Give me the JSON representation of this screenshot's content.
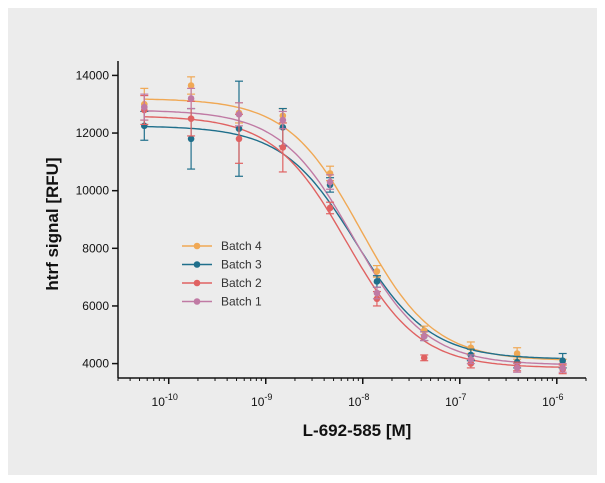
{
  "chart_data": {
    "type": "scatter",
    "title": "",
    "xlabel": "L-692-585 [M]",
    "ylabel": "htrf signal [RFU]",
    "xscale": "log",
    "xlim": [
      3e-11,
      2e-06
    ],
    "ylim": [
      3500,
      14500
    ],
    "x_ticks": [
      1e-10,
      1e-09,
      1e-08,
      1e-07,
      1e-06
    ],
    "x_tick_labels": [
      {
        "base": "10",
        "exp": "-10"
      },
      {
        "base": "10",
        "exp": "-9"
      },
      {
        "base": "10",
        "exp": "-8"
      },
      {
        "base": "10",
        "exp": "-7"
      },
      {
        "base": "10",
        "exp": "-6"
      }
    ],
    "y_ticks": [
      4000,
      6000,
      8000,
      10000,
      12000,
      14000
    ],
    "y_tick_labels": [
      "4000",
      "6000",
      "8000",
      "10000",
      "12000",
      "14000"
    ],
    "grid": false,
    "legend_position": "center-left",
    "x": [
      5.6e-11,
      1.7e-10,
      5.3e-10,
      1.5e-09,
      4.6e-09,
      1.4e-08,
      4.3e-08,
      1.3e-07,
      3.9e-07,
      1.15e-06
    ],
    "series": [
      {
        "name": "Batch 4",
        "color": "#f0a854",
        "y": [
          13000,
          13650,
          12700,
          12600,
          10600,
          7200,
          5150,
          4550,
          4350,
          4000
        ],
        "err": [
          550,
          300,
          350,
          250,
          250,
          200,
          150,
          200,
          200,
          150
        ],
        "fit": {
          "top": 13200,
          "bottom": 4100,
          "ec50": 9.5e-09,
          "hill": 1.15
        }
      },
      {
        "name": "Batch 3",
        "color": "#1f6f8b",
        "y": [
          12250,
          11800,
          12150,
          12200,
          10200,
          6850,
          4950,
          4300,
          4050,
          4100
        ],
        "err": [
          500,
          1050,
          1650,
          650,
          250,
          200,
          150,
          200,
          200,
          250
        ],
        "fit": {
          "top": 12250,
          "bottom": 4150,
          "ec50": 8.5e-09,
          "hill": 1.15
        }
      },
      {
        "name": "Batch 2",
        "color": "#e06262",
        "y": [
          12800,
          12500,
          11800,
          11500,
          9400,
          6250,
          4200,
          4000,
          3900,
          3800
        ],
        "err": [
          500,
          600,
          850,
          850,
          200,
          250,
          100,
          150,
          150,
          150
        ],
        "fit": {
          "top": 12600,
          "bottom": 3850,
          "ec50": 6.8e-09,
          "hill": 1.15
        }
      },
      {
        "name": "Batch 1",
        "color": "#c07aa4",
        "y": [
          12900,
          13200,
          12650,
          12450,
          10300,
          6450,
          4950,
          4150,
          3850,
          3850
        ],
        "err": [
          450,
          350,
          400,
          300,
          250,
          200,
          150,
          150,
          150,
          150
        ],
        "fit": {
          "top": 12800,
          "bottom": 3950,
          "ec50": 8e-09,
          "hill": 1.15
        }
      }
    ]
  }
}
